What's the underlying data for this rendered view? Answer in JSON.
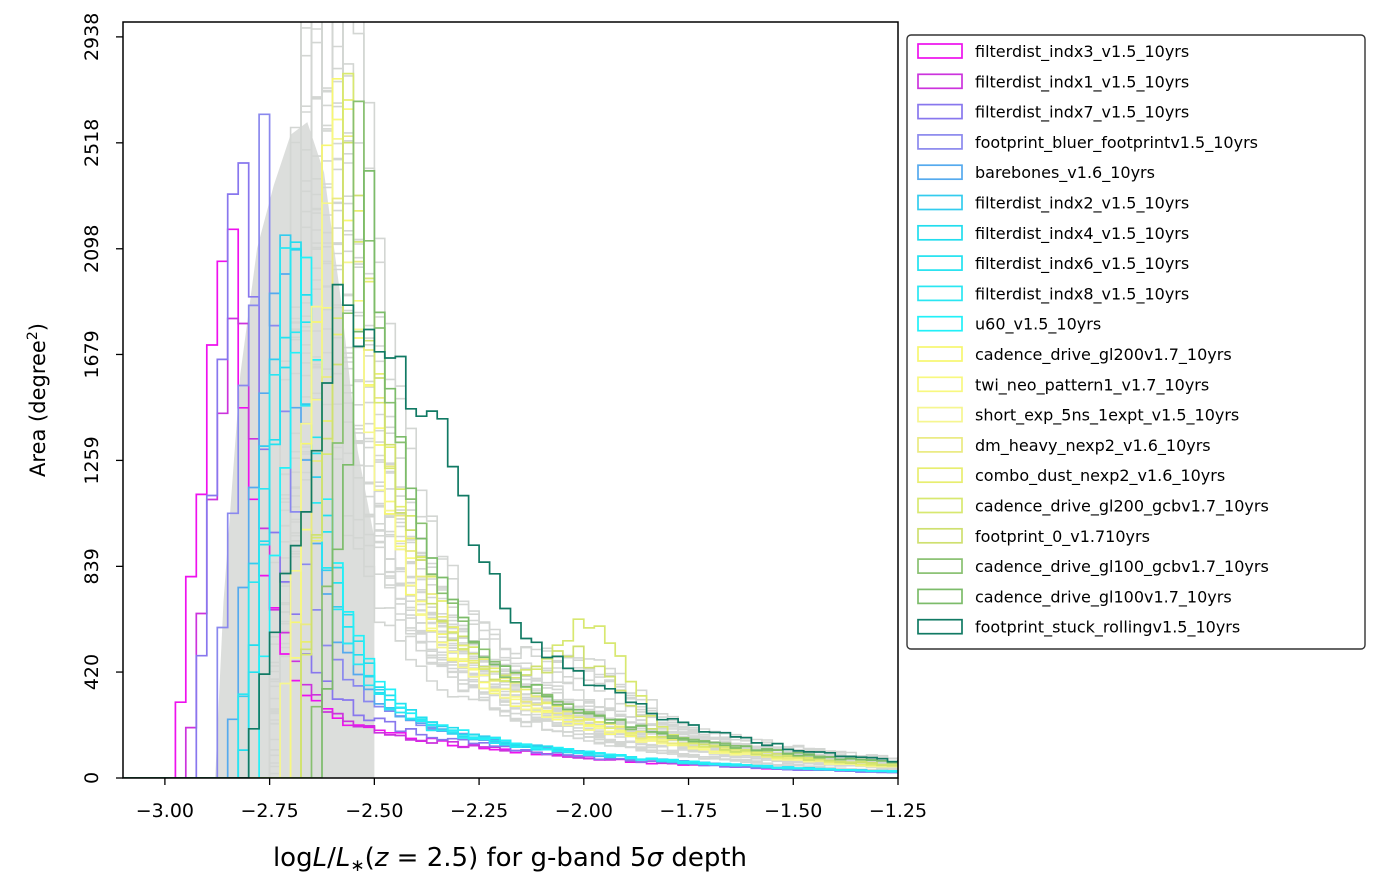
{
  "chart_data": {
    "type": "histogram-step",
    "xlabel": "logL/L*(z = 2.5) for g-band 5σ depth",
    "ylabel": "Area (degree²)",
    "xlim": [
      -3.1,
      -1.25
    ],
    "ylim": [
      0,
      2997
    ],
    "x_ticks": [
      -3.0,
      -2.75,
      -2.5,
      -2.25,
      -2.0,
      -1.75,
      -1.5,
      -1.25
    ],
    "x_tick_labels": [
      "−3.00",
      "−2.75",
      "−2.50",
      "−2.25",
      "−2.00",
      "−1.75",
      "−1.50",
      "−1.25"
    ],
    "y_ticks": [
      0,
      420,
      839,
      1259,
      1679,
      2098,
      2518,
      2938
    ],
    "y_tick_labels": [
      "0",
      "420",
      "839",
      "1259",
      "1679",
      "2098",
      "2518",
      "2938"
    ],
    "grid": false,
    "legend_placement": "outside-right",
    "background_series": {
      "color": "#d3d6d3",
      "count": 28
    },
    "series": [
      {
        "name": "filterdist_indx3_v1.5_10yrs",
        "color": "#ee11ee"
      },
      {
        "name": "filterdist_indx1_v1.5_10yrs",
        "color": "#cc33dd"
      },
      {
        "name": "filterdist_indx7_v1.5_10yrs",
        "color": "#8877ee"
      },
      {
        "name": "footprint_bluer_footprintv1.5_10yrs",
        "color": "#8a88ee"
      },
      {
        "name": "barebones_v1.6_10yrs",
        "color": "#55aaee"
      },
      {
        "name": "filterdist_indx2_v1.5_10yrs",
        "color": "#33ccee"
      },
      {
        "name": "filterdist_indx4_v1.5_10yrs",
        "color": "#22ddee"
      },
      {
        "name": "filterdist_indx6_v1.5_10yrs",
        "color": "#22e2f0"
      },
      {
        "name": "filterdist_indx8_v1.5_10yrs",
        "color": "#2ae6f2"
      },
      {
        "name": "u60_v1.5_10yrs",
        "color": "#22f0f8"
      },
      {
        "name": "cadence_drive_gl200v1.7_10yrs",
        "color": "#f7f770"
      },
      {
        "name": "twi_neo_pattern1_v1.7_10yrs",
        "color": "#f8f880"
      },
      {
        "name": "short_exp_5ns_1expt_v1.5_10yrs",
        "color": "#f6f690"
      },
      {
        "name": "dm_heavy_nexp2_v1.6_10yrs",
        "color": "#eaea80"
      },
      {
        "name": "combo_dust_nexp2_v1.6_10yrs",
        "color": "#e8ee70"
      },
      {
        "name": "cadence_drive_gl200_gcbv1.7_10yrs",
        "color": "#d8e870"
      },
      {
        "name": "footprint_0_v1.710yrs",
        "color": "#cfe070"
      },
      {
        "name": "cadence_drive_gl100_gcbv1.7_10yrs",
        "color": "#88c070"
      },
      {
        "name": "cadence_drive_gl100v1.7_10yrs",
        "color": "#7cbc6a"
      },
      {
        "name": "footprint_stuck_rollingv1.5_10yrs",
        "color": "#117a64"
      }
    ]
  }
}
